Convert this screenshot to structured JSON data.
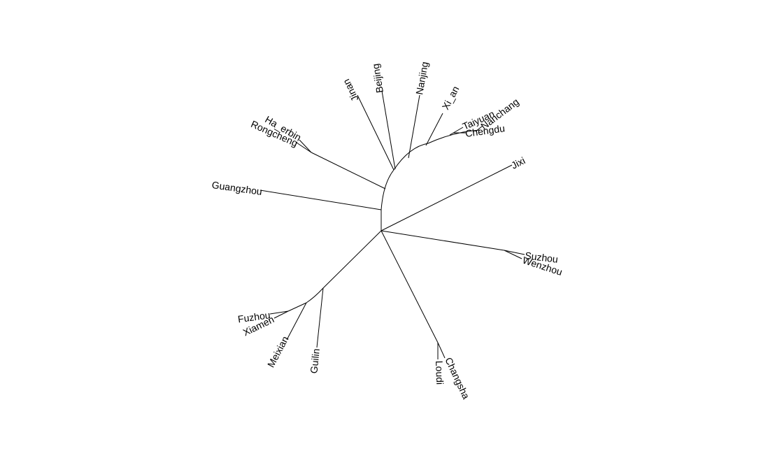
{
  "tree": {
    "tips": [
      {
        "id": "jinan",
        "label": "Jinan"
      },
      {
        "id": "beijing",
        "label": "Beijing"
      },
      {
        "id": "nanjing",
        "label": "Nanjing"
      },
      {
        "id": "xi_an",
        "label": "Xi_an"
      },
      {
        "id": "taiyuan",
        "label": "Taiyuan"
      },
      {
        "id": "nanchang",
        "label": "Nanchang"
      },
      {
        "id": "chengdu",
        "label": "Chengdu"
      },
      {
        "id": "ha_erbin",
        "label": "Ha_erbin"
      },
      {
        "id": "rongcheng",
        "label": "Rongcheng"
      },
      {
        "id": "guangzhou",
        "label": "Guangzhou"
      },
      {
        "id": "jixi",
        "label": "Jixi"
      },
      {
        "id": "suzhou",
        "label": "Suzhou"
      },
      {
        "id": "wenzhou",
        "label": "Wenzhou"
      },
      {
        "id": "fuzhou",
        "label": "Fuzhou"
      },
      {
        "id": "xiamen",
        "label": "Xiamen"
      },
      {
        "id": "meixian",
        "label": "Meixian"
      },
      {
        "id": "guilin",
        "label": "Guilin"
      },
      {
        "id": "changsha",
        "label": "Changsha"
      },
      {
        "id": "loudi",
        "label": "Loudi"
      }
    ]
  }
}
